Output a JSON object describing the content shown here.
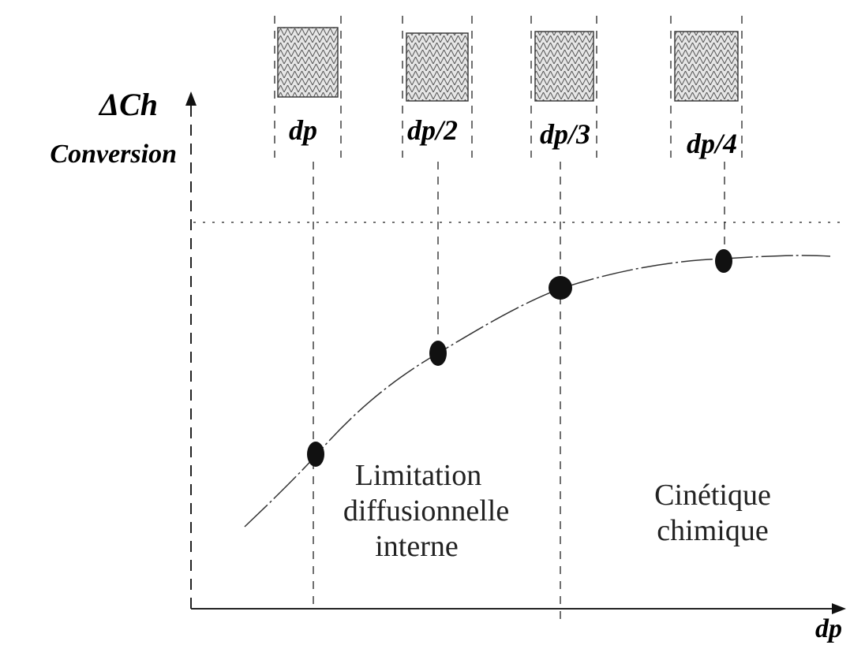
{
  "y_axis": {
    "symbol": "ΔCh",
    "label": "Conversion"
  },
  "x_axis": {
    "label": "dp"
  },
  "particles": [
    {
      "label": "dp"
    },
    {
      "label": "dp/2"
    },
    {
      "label": "dp/3"
    },
    {
      "label": "dp/4"
    }
  ],
  "regions": [
    {
      "lines": [
        "Limitation",
        "diffusionnelle",
        "interne"
      ]
    },
    {
      "lines": [
        "Cinétique",
        "chimique"
      ]
    }
  ]
}
